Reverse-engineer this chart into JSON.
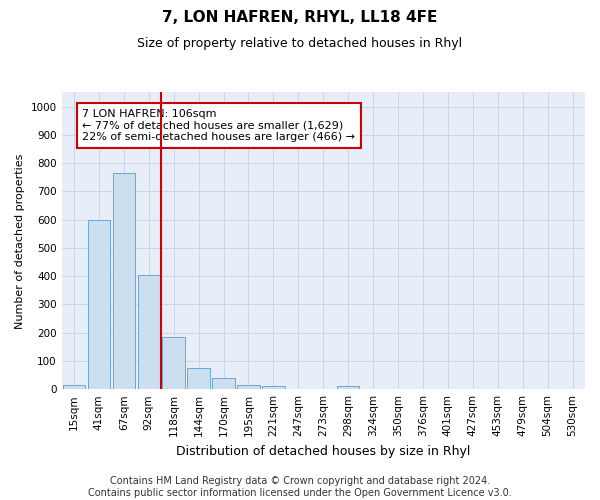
{
  "title": "7, LON HAFREN, RHYL, LL18 4FE",
  "subtitle": "Size of property relative to detached houses in Rhyl",
  "xlabel": "Distribution of detached houses by size in Rhyl",
  "ylabel": "Number of detached properties",
  "categories": [
    "15sqm",
    "41sqm",
    "67sqm",
    "92sqm",
    "118sqm",
    "144sqm",
    "170sqm",
    "195sqm",
    "221sqm",
    "247sqm",
    "273sqm",
    "298sqm",
    "324sqm",
    "350sqm",
    "376sqm",
    "401sqm",
    "427sqm",
    "453sqm",
    "479sqm",
    "504sqm",
    "530sqm"
  ],
  "values": [
    15,
    600,
    765,
    405,
    185,
    75,
    38,
    15,
    10,
    0,
    0,
    12,
    0,
    0,
    0,
    0,
    0,
    0,
    0,
    0,
    0
  ],
  "bar_color": "#ccdff0",
  "bar_edge_color": "#5b9bd5",
  "vline_color": "#cc0000",
  "annotation_text": "7 LON HAFREN: 106sqm\n← 77% of detached houses are smaller (1,629)\n22% of semi-detached houses are larger (466) →",
  "annotation_box_color": "#ffffff",
  "annotation_box_edge": "#cc0000",
  "ylim": [
    0,
    1050
  ],
  "yticks": [
    0,
    100,
    200,
    300,
    400,
    500,
    600,
    700,
    800,
    900,
    1000
  ],
  "grid_color": "#ccd6e8",
  "bg_color": "#e8eef8",
  "footer": "Contains HM Land Registry data © Crown copyright and database right 2024.\nContains public sector information licensed under the Open Government Licence v3.0.",
  "title_fontsize": 11,
  "subtitle_fontsize": 9,
  "xlabel_fontsize": 9,
  "ylabel_fontsize": 8,
  "tick_fontsize": 7.5,
  "annotation_fontsize": 8,
  "footer_fontsize": 7
}
